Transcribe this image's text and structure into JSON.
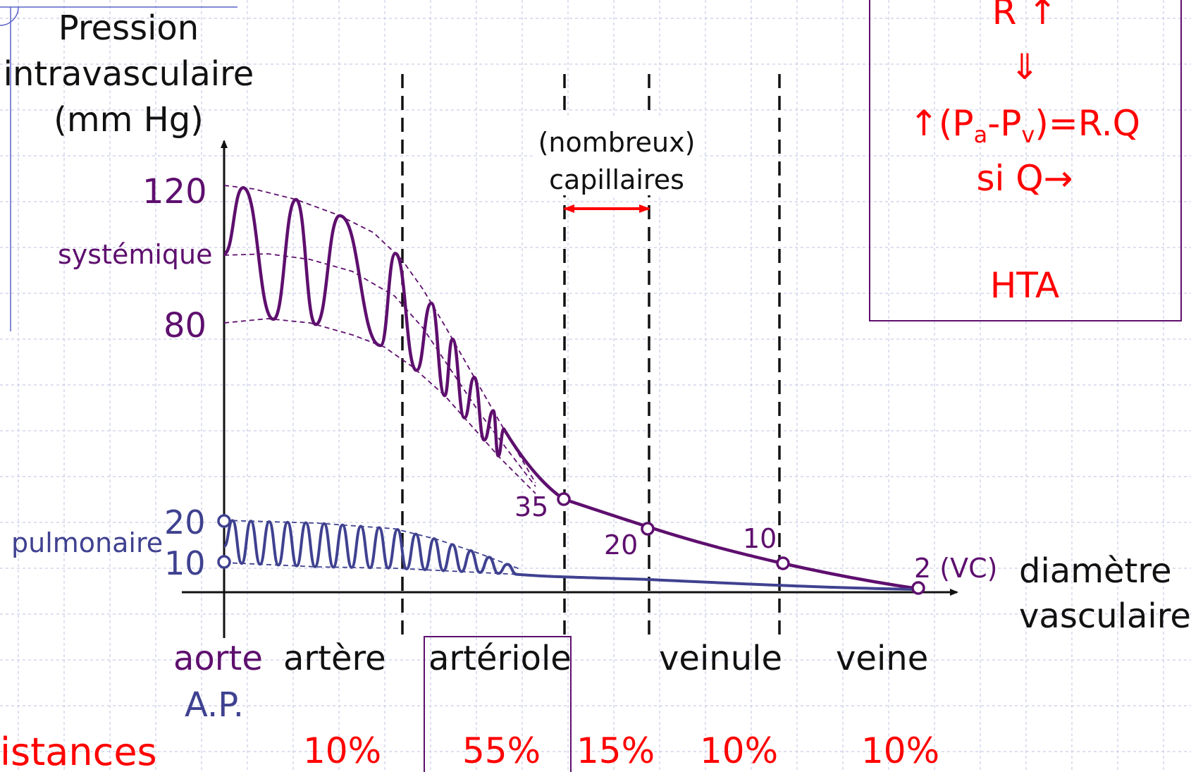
{
  "colors": {
    "systemic": "#5e0f6e",
    "pulmonary": "#3f4190",
    "highlight": "#ff0000",
    "text": "#111111",
    "grid": "#c9cde6"
  },
  "y_axis_title": [
    "Pression",
    "intravasculaire",
    "(mm Hg)"
  ],
  "x_axis_title": [
    "diamètre",
    "vasculaire"
  ],
  "y_ticks": {
    "systemic": [
      "120",
      "80"
    ],
    "pulmonary": [
      "20",
      "10"
    ]
  },
  "curve_labels": {
    "systemic": "systémique",
    "pulmonary": "pulmonaire"
  },
  "point_labels": [
    "35",
    "20",
    "10",
    "2 (VC)"
  ],
  "capillary_label": [
    "(nombreux)",
    "capillaires"
  ],
  "segments": {
    "aorte": "aorte",
    "ap": "A.P.",
    "artere": "artère",
    "arteriole": "artériole",
    "veinule": "veinule",
    "veine": "veine"
  },
  "resistances": {
    "label": "istances",
    "values": [
      "10%",
      "55%",
      "15%",
      "10%",
      "10%"
    ]
  },
  "box": {
    "line1": "R ↑",
    "line2": "⇓",
    "line3_start": "↑(P",
    "sub_a": "a",
    "dash": "-P",
    "sub_v": "v",
    "line3_end": ")=R.Q",
    "line4": "si Q→",
    "line5": "HTA"
  }
}
